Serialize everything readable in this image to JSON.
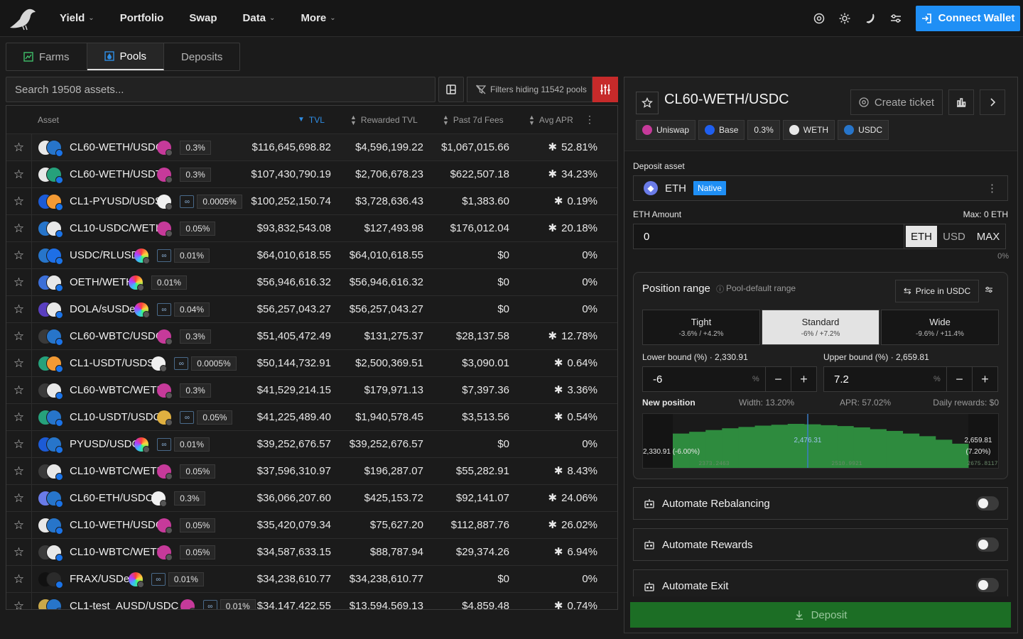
{
  "nav": {
    "items": [
      {
        "label": "Yield",
        "dropdown": true
      },
      {
        "label": "Portfolio",
        "dropdown": false
      },
      {
        "label": "Swap",
        "dropdown": false
      },
      {
        "label": "Data",
        "dropdown": true
      },
      {
        "label": "More",
        "dropdown": true
      }
    ],
    "connect_label": "Connect Wallet"
  },
  "tabs": [
    {
      "label": "Farms",
      "active": false
    },
    {
      "label": "Pools",
      "active": true
    },
    {
      "label": "Deposits",
      "active": false
    }
  ],
  "search": {
    "placeholder": "Search 19508 assets..."
  },
  "filters": {
    "label": "Filters hiding 11542 pools"
  },
  "table": {
    "headers": {
      "asset": "Asset",
      "tvl": "TVL",
      "rewarded_tvl": "Rewarded TVL",
      "fees": "Past 7d Fees",
      "apr": "Avg APR"
    },
    "rows": [
      {
        "name": "CL60-WETH/USDC",
        "fee": "0.3%",
        "link": false,
        "tvl": "$116,645,698.82",
        "rtvl": "$4,596,199.22",
        "fees": "$1,067,015.66",
        "apr": "52.81%",
        "star": true,
        "colors": [
          "#e8e8e8",
          "#2775ca"
        ],
        "dex": "#c63a9a"
      },
      {
        "name": "CL60-WETH/USDT",
        "fee": "0.3%",
        "link": false,
        "tvl": "$107,430,790.19",
        "rtvl": "$2,706,678.23",
        "fees": "$622,507.18",
        "apr": "34.23%",
        "star": true,
        "colors": [
          "#e8e8e8",
          "#26a17b"
        ],
        "dex": "#c63a9a"
      },
      {
        "name": "CL1-PYUSD/USDS",
        "fee": "0.0005%",
        "link": true,
        "tvl": "$100,252,150.74",
        "rtvl": "$3,728,636.43",
        "fees": "$1,383.60",
        "apr": "0.19%",
        "star": true,
        "colors": [
          "#1c5bd6",
          "#f39a34"
        ],
        "dex": "#f0f0f0"
      },
      {
        "name": "CL10-USDC/WETH",
        "fee": "0.05%",
        "link": false,
        "tvl": "$93,832,543.08",
        "rtvl": "$127,493.98",
        "fees": "$176,012.04",
        "apr": "20.18%",
        "star": true,
        "colors": [
          "#2775ca",
          "#e8e8e8"
        ],
        "dex": "#c63a9a"
      },
      {
        "name": "USDC/RLUSD",
        "fee": "0.01%",
        "link": true,
        "tvl": "$64,010,618.55",
        "rtvl": "$64,010,618.55",
        "fees": "$0",
        "apr": "0%",
        "star": false,
        "colors": [
          "#2775ca",
          "#1e6fe6"
        ],
        "dex": "rainbow"
      },
      {
        "name": "OETH/WETH",
        "fee": "0.01%",
        "link": false,
        "tvl": "$56,946,616.32",
        "rtvl": "$56,946,616.32",
        "fees": "$0",
        "apr": "0%",
        "star": false,
        "colors": [
          "#3c6fd8",
          "#e8e8e8"
        ],
        "dex": "rainbow"
      },
      {
        "name": "DOLA/sUSDe",
        "fee": "0.04%",
        "link": true,
        "tvl": "$56,257,043.27",
        "rtvl": "$56,257,043.27",
        "fees": "$0",
        "apr": "0%",
        "star": false,
        "colors": [
          "#5a3fc0",
          "#e8e8e8"
        ],
        "dex": "rainbow"
      },
      {
        "name": "CL60-WBTC/USDC",
        "fee": "0.3%",
        "link": false,
        "tvl": "$51,405,472.49",
        "rtvl": "$131,275.37",
        "fees": "$28,137.58",
        "apr": "12.78%",
        "star": true,
        "colors": [
          "#3a3a3a",
          "#2775ca"
        ],
        "dex": "#c63a9a"
      },
      {
        "name": "CL1-USDT/USDS",
        "fee": "0.0005%",
        "link": true,
        "tvl": "$50,144,732.91",
        "rtvl": "$2,500,369.51",
        "fees": "$3,090.01",
        "apr": "0.64%",
        "star": true,
        "colors": [
          "#26a17b",
          "#f39a34"
        ],
        "dex": "#f0f0f0"
      },
      {
        "name": "CL60-WBTC/WETH",
        "fee": "0.3%",
        "link": false,
        "tvl": "$41,529,214.15",
        "rtvl": "$179,971.13",
        "fees": "$7,397.36",
        "apr": "3.36%",
        "star": true,
        "colors": [
          "#3a3a3a",
          "#e8e8e8"
        ],
        "dex": "#c63a9a"
      },
      {
        "name": "CL10-USDT/USDC",
        "fee": "0.05%",
        "link": true,
        "tvl": "$41,225,489.40",
        "rtvl": "$1,940,578.45",
        "fees": "$3,513.56",
        "apr": "0.54%",
        "star": true,
        "colors": [
          "#26a17b",
          "#2775ca"
        ],
        "dex": "#e0b040"
      },
      {
        "name": "PYUSD/USDC",
        "fee": "0.01%",
        "link": true,
        "tvl": "$39,252,676.57",
        "rtvl": "$39,252,676.57",
        "fees": "$0",
        "apr": "0%",
        "star": false,
        "colors": [
          "#1c5bd6",
          "#2775ca"
        ],
        "dex": "rainbow"
      },
      {
        "name": "CL10-WBTC/WETH",
        "fee": "0.05%",
        "link": false,
        "tvl": "$37,596,310.97",
        "rtvl": "$196,287.07",
        "fees": "$55,282.91",
        "apr": "8.43%",
        "star": true,
        "colors": [
          "#3a3a3a",
          "#e8e8e8"
        ],
        "dex": "#c63a9a"
      },
      {
        "name": "CL60-ETH/USDC",
        "fee": "0.3%",
        "link": false,
        "tvl": "$36,066,207.60",
        "rtvl": "$425,153.72",
        "fees": "$92,141.07",
        "apr": "24.06%",
        "star": true,
        "colors": [
          "#6a7be8",
          "#2775ca"
        ],
        "dex": "#f0f0f0"
      },
      {
        "name": "CL10-WETH/USDC",
        "fee": "0.05%",
        "link": false,
        "tvl": "$35,420,079.34",
        "rtvl": "$75,627.20",
        "fees": "$112,887.76",
        "apr": "26.02%",
        "star": true,
        "colors": [
          "#e8e8e8",
          "#2775ca"
        ],
        "dex": "#c63a9a"
      },
      {
        "name": "CL10-WBTC/WETH",
        "fee": "0.05%",
        "link": false,
        "tvl": "$34,587,633.15",
        "rtvl": "$88,787.94",
        "fees": "$29,374.26",
        "apr": "6.94%",
        "star": true,
        "colors": [
          "#3a3a3a",
          "#e8e8e8"
        ],
        "dex": "#c63a9a"
      },
      {
        "name": "FRAX/USDe",
        "fee": "0.01%",
        "link": true,
        "tvl": "$34,238,610.77",
        "rtvl": "$34,238,610.77",
        "fees": "$0",
        "apr": "0%",
        "star": false,
        "colors": [
          "#111111",
          "#2b2b2b"
        ],
        "dex": "rainbow"
      },
      {
        "name": "CL1-test_AUSD/USDC",
        "fee": "0.01%",
        "link": true,
        "tvl": "$34,147,422.55",
        "rtvl": "$13,594,569.13",
        "fees": "$4,859.48",
        "apr": "0.74%",
        "star": true,
        "colors": [
          "#c9a94a",
          "#2775ca"
        ],
        "dex": "#c63a9a"
      }
    ]
  },
  "panel": {
    "title": "CL60-WETH/USDC",
    "ticket_label": "Create ticket",
    "chips": [
      {
        "label": "Uniswap",
        "color": "#c63a9a"
      },
      {
        "label": "Base",
        "color": "#1f5ff0"
      },
      {
        "label": "0.3%",
        "color": ""
      },
      {
        "label": "WETH",
        "color": "#e8e8e8"
      },
      {
        "label": "USDC",
        "color": "#2775ca"
      }
    ],
    "deposit_asset_label": "Deposit asset",
    "asset": "ETH",
    "native_label": "Native",
    "amount_label": "ETH Amount",
    "max_label": "Max: 0 ETH",
    "amount_value": "0",
    "units": [
      "ETH",
      "USD",
      "MAX"
    ],
    "amount_pct": "0%",
    "range": {
      "title": "Position range",
      "subtitle": "Pool-default range",
      "price_label": "Price in USDC",
      "presets": [
        {
          "label": "Tight",
          "sub": "-3.6% / +4.2%",
          "active": false
        },
        {
          "label": "Standard",
          "sub": "-6% / +7.2%",
          "active": true
        },
        {
          "label": "Wide",
          "sub": "-9.6% / +11.4%",
          "active": false
        }
      ],
      "lower_label": "Lower bound (%) · 2,330.91",
      "upper_label": "Upper bound (%) · 2,659.81",
      "lower_value": "-6",
      "upper_value": "7.2",
      "new_position": "New position",
      "width": "Width: 13.20%",
      "apr": "APR: 57.02%",
      "daily": "Daily rewards: $0"
    },
    "hist": {
      "lower_label": "2,330.91 (-6.00%)",
      "upper_label_1": "2,659.81",
      "upper_label_2": "(7.20%)",
      "current": "2,476.31",
      "tick_1": "2373.2463",
      "tick_2": "2510.9921",
      "tick_3": "2675.8117",
      "heights": [
        0.78,
        0.82,
        0.86,
        0.9,
        0.93,
        0.96,
        0.98,
        1.0,
        0.99,
        0.97,
        0.95,
        0.92,
        0.88,
        0.84,
        0.78,
        0.72,
        0.64,
        0.55
      ]
    },
    "automations": [
      "Automate Rebalancing",
      "Automate Rewards",
      "Automate Exit"
    ],
    "deposit_label": "Deposit"
  }
}
